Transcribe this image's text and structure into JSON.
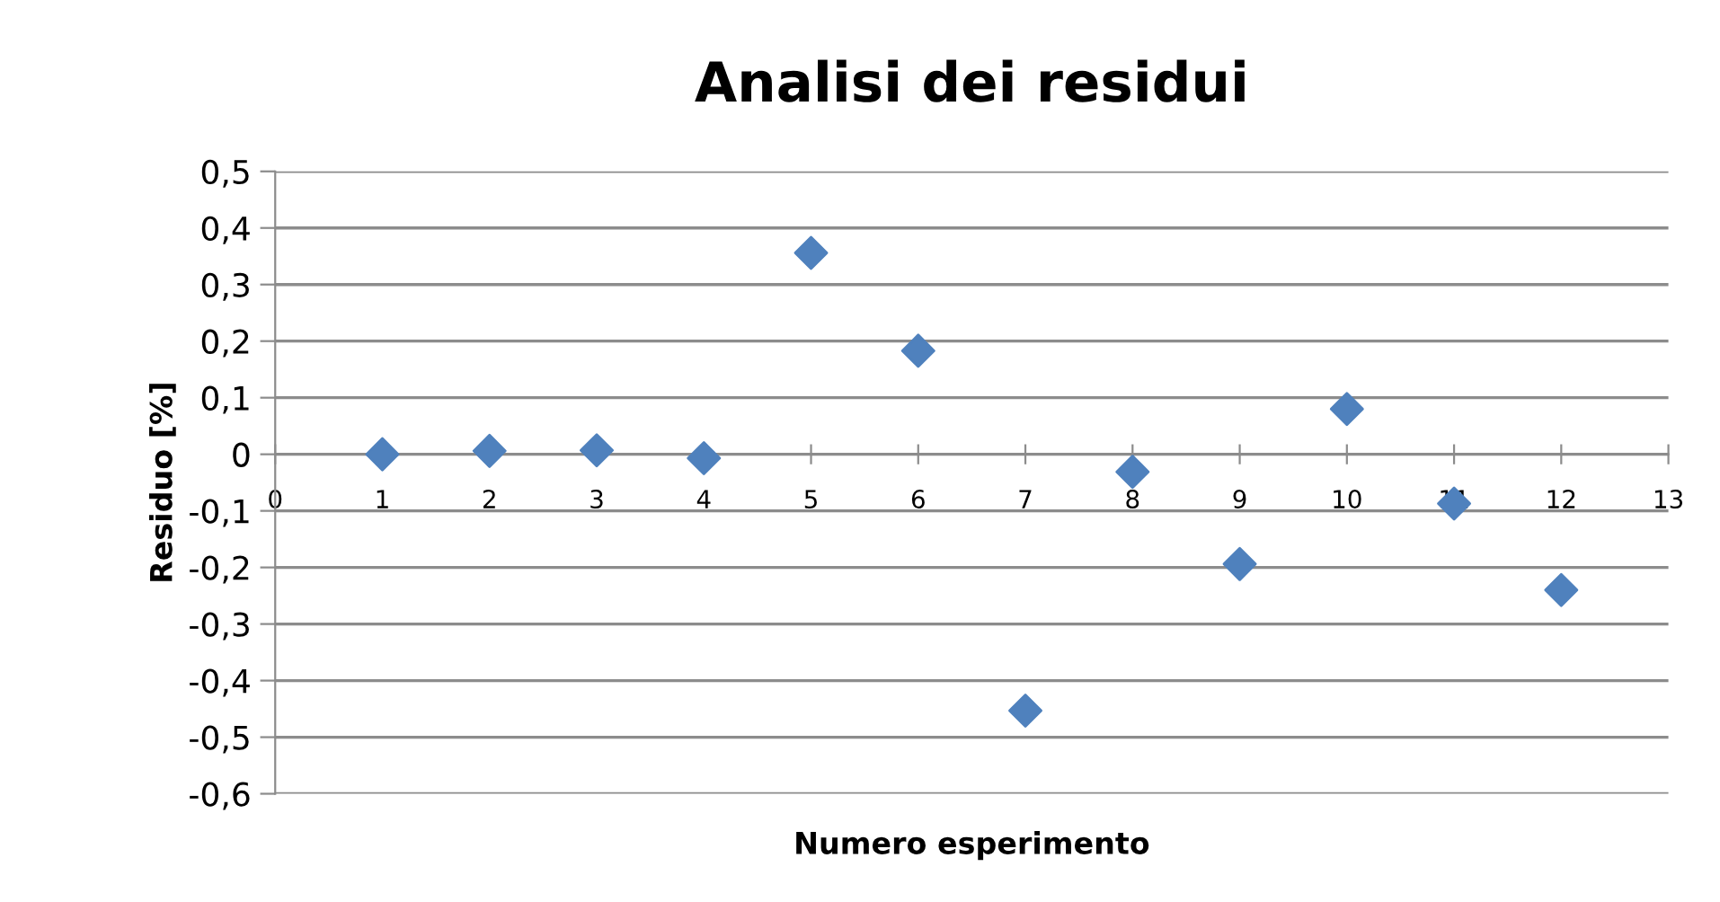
{
  "chart_data": {
    "type": "scatter",
    "title": "Analisi dei residui",
    "xlabel": "Numero esperimento",
    "ylabel": "Residuo [%]",
    "x": [
      1,
      2,
      3,
      4,
      5,
      6,
      7,
      8,
      9,
      10,
      11,
      12
    ],
    "series": [
      {
        "color": "#4f81bd",
        "values": [
          0,
          0.006,
          0.007,
          -0.007,
          0.356,
          0.183,
          -0.453,
          -0.031,
          -0.194,
          0.08,
          -0.087,
          -0.24
        ]
      }
    ],
    "marker": "diamond",
    "grid": "y",
    "legend": false,
    "xlim": [
      0,
      13
    ],
    "xticks": [
      0,
      1,
      2,
      3,
      4,
      5,
      6,
      7,
      8,
      9,
      10,
      11,
      12,
      13
    ],
    "ylim": [
      -0.6,
      0.5
    ],
    "yticks": [
      {
        "value": 0.5,
        "label": "0,5"
      },
      {
        "value": 0.4,
        "label": "0,4"
      },
      {
        "value": 0.3,
        "label": "0,3"
      },
      {
        "value": 0.2,
        "label": "0,2"
      },
      {
        "value": 0.1,
        "label": "0,1"
      },
      {
        "value": 0,
        "label": "0"
      },
      {
        "value": -0.1,
        "label": "-0,1"
      },
      {
        "value": -0.2,
        "label": "-0,2"
      },
      {
        "value": -0.3,
        "label": "-0,3"
      },
      {
        "value": -0.4,
        "label": "-0,4"
      },
      {
        "value": -0.5,
        "label": "-0,5"
      },
      {
        "value": -0.6,
        "label": "-0,6"
      }
    ]
  }
}
